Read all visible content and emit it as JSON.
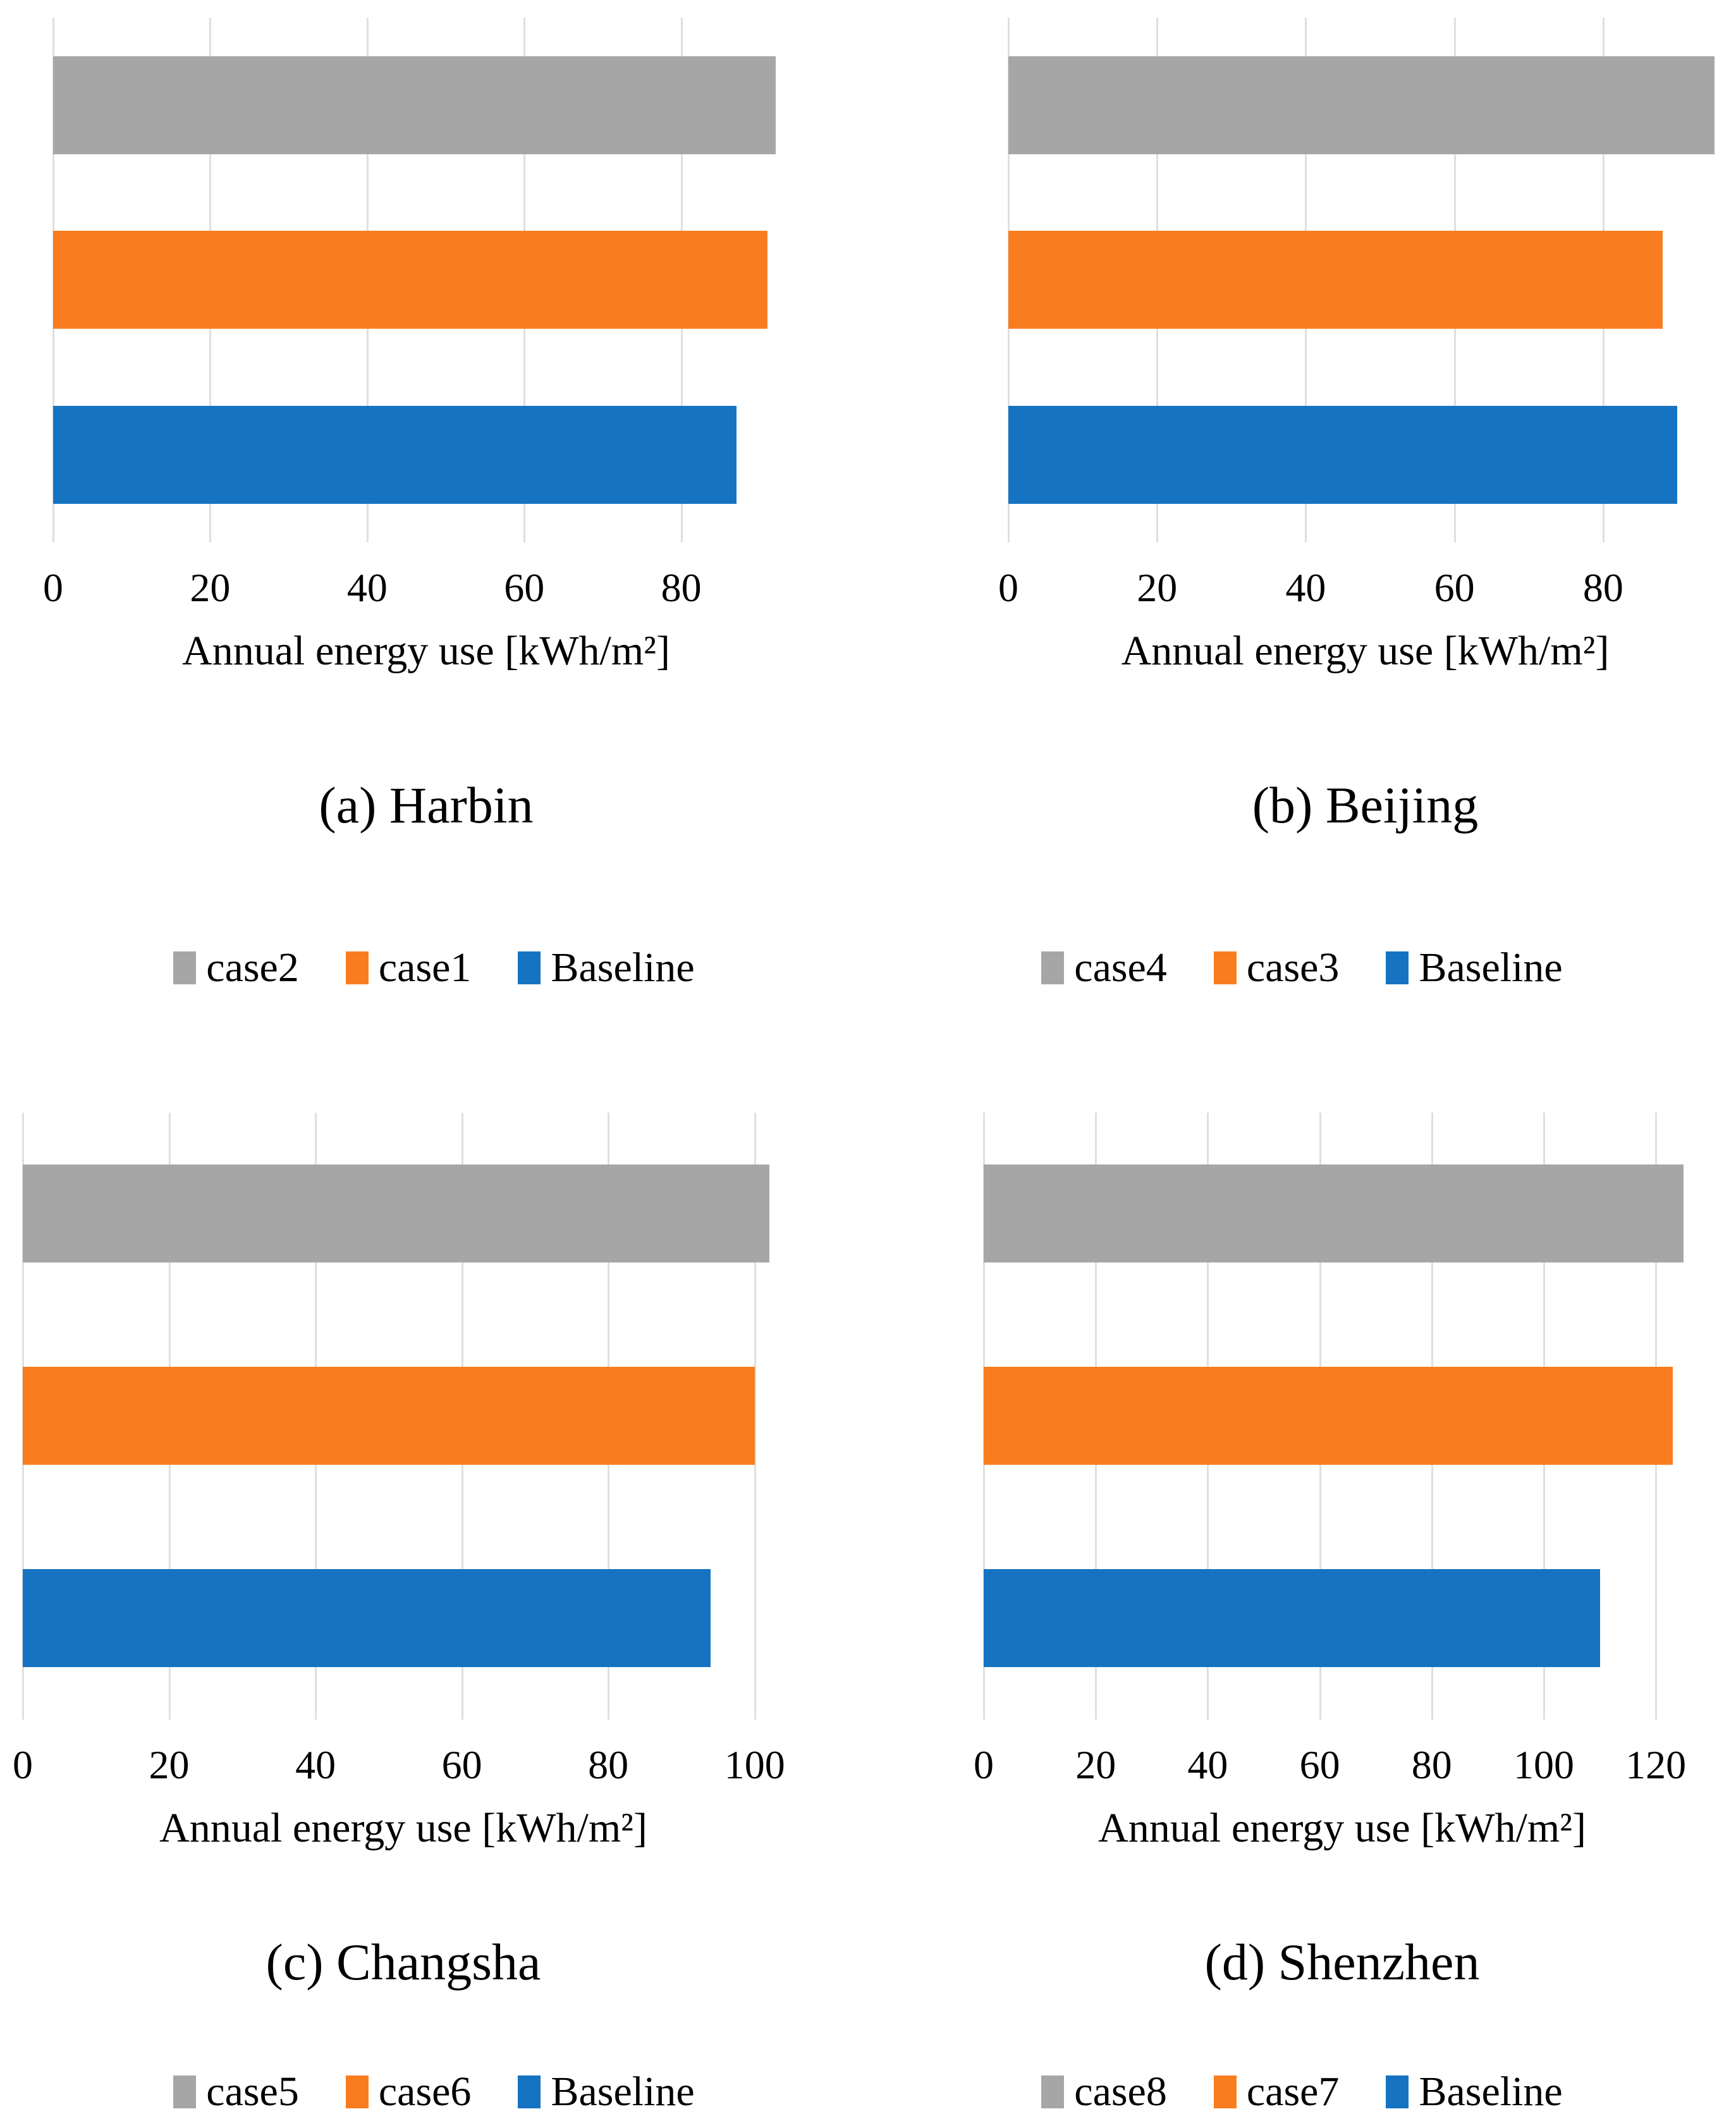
{
  "figure": {
    "background": "#ffffff",
    "series_colors": {
      "gray": "#a6a6a6",
      "orange": "#f97d1f",
      "blue": "#1673c2"
    },
    "gridline_color": "#dfdfdf"
  },
  "chart_data": [
    {
      "type": "bar",
      "orientation": "horizontal",
      "title": "(a) Harbin",
      "xlabel": "Annual energy use [kWh/m²]",
      "categories": [
        "case2",
        "case1",
        "Baseline"
      ],
      "values": [
        92,
        91,
        87
      ],
      "colors": [
        "#a6a6a6",
        "#f97d1f",
        "#1673c2"
      ],
      "xticks": [
        0,
        20,
        40,
        60,
        80
      ],
      "xlim": [
        0,
        95
      ],
      "grid": "vertical",
      "legend": [
        "case2",
        "case1",
        "Baseline"
      ],
      "legend_position": "bottom"
    },
    {
      "type": "bar",
      "orientation": "horizontal",
      "title": "(b) Beijing",
      "xlabel": "Annual energy use [kWh/m²]",
      "categories": [
        "case4",
        "case3",
        "Baseline"
      ],
      "values": [
        95,
        88,
        90
      ],
      "colors": [
        "#a6a6a6",
        "#f97d1f",
        "#1673c2"
      ],
      "xticks": [
        0,
        20,
        40,
        60,
        80
      ],
      "xlim": [
        0,
        96
      ],
      "grid": "vertical",
      "legend": [
        "case4",
        "case3",
        "Baseline"
      ],
      "legend_position": "bottom"
    },
    {
      "type": "bar",
      "orientation": "horizontal",
      "title": "(c) Changsha",
      "xlabel": "Annual energy use [kWh/m²]",
      "categories": [
        "case5",
        "case6",
        "Baseline"
      ],
      "values": [
        102,
        100,
        94
      ],
      "colors": [
        "#a6a6a6",
        "#f97d1f",
        "#1673c2"
      ],
      "xticks": [
        0,
        20,
        40,
        60,
        80,
        100
      ],
      "xlim": [
        0,
        104
      ],
      "grid": "vertical",
      "legend": [
        "case5",
        "case6",
        "Baseline"
      ],
      "legend_position": "bottom"
    },
    {
      "type": "bar",
      "orientation": "horizontal",
      "title": "(d) Shenzhen",
      "xlabel": "Annual energy use [kWh/m²]",
      "categories": [
        "case8",
        "case7",
        "Baseline"
      ],
      "values": [
        125,
        123,
        110
      ],
      "colors": [
        "#a6a6a6",
        "#f97d1f",
        "#1673c2"
      ],
      "xticks": [
        0,
        20,
        40,
        60,
        80,
        100,
        120
      ],
      "xlim": [
        0,
        128
      ],
      "grid": "vertical",
      "legend": [
        "case8",
        "case7",
        "Baseline"
      ],
      "legend_position": "bottom"
    }
  ]
}
